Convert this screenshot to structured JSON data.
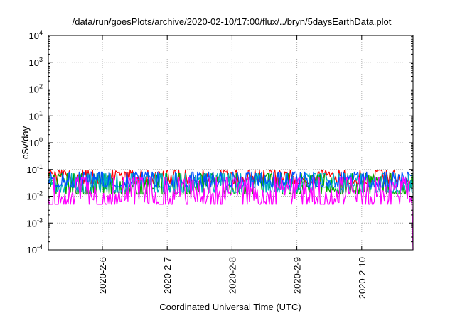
{
  "chart_data": {
    "type": "line",
    "title": "/data/run/goesPlots/archive/2020-02-10/17:00/flux/../bryn/5daysEarthData.plot",
    "xlabel": "Coordinated Universal Time (UTC)",
    "ylabel": "cSv/day",
    "yscale": "log",
    "ylim": [
      0.0001,
      10000
    ],
    "xlim": [
      "2020-02-05 04:00",
      "2020-02-10 19:00"
    ],
    "x_ticks": [
      "2020-2-6",
      "2020-2-7",
      "2020-2-8",
      "2020-2-9",
      "2020-2-10"
    ],
    "y_ticks": [
      {
        "base": "10",
        "exp": "4"
      },
      {
        "base": "10",
        "exp": "3"
      },
      {
        "base": "10",
        "exp": "2"
      },
      {
        "base": "10",
        "exp": "1"
      },
      {
        "base": "10",
        "exp": "0"
      },
      {
        "base": "10",
        "exp": "-1"
      },
      {
        "base": "10",
        "exp": "-2"
      },
      {
        "base": "10",
        "exp": "-3"
      },
      {
        "base": "10",
        "exp": "-4"
      }
    ],
    "grid": true,
    "legend": "none",
    "series": [
      {
        "color": "#ff0000",
        "typical_min": 0.03,
        "typical_max": 0.095
      },
      {
        "color": "#00aa00",
        "typical_min": 0.012,
        "typical_max": 0.07
      },
      {
        "color": "#00b0c0",
        "typical_min": 0.014,
        "typical_max": 0.07
      },
      {
        "color": "#0050ff",
        "typical_min": 0.022,
        "typical_max": 0.08
      },
      {
        "color": "#ff00ff",
        "typical_min": 0.005,
        "typical_max": 0.05,
        "end_dropout": "2020-02-10 17:30"
      }
    ]
  }
}
